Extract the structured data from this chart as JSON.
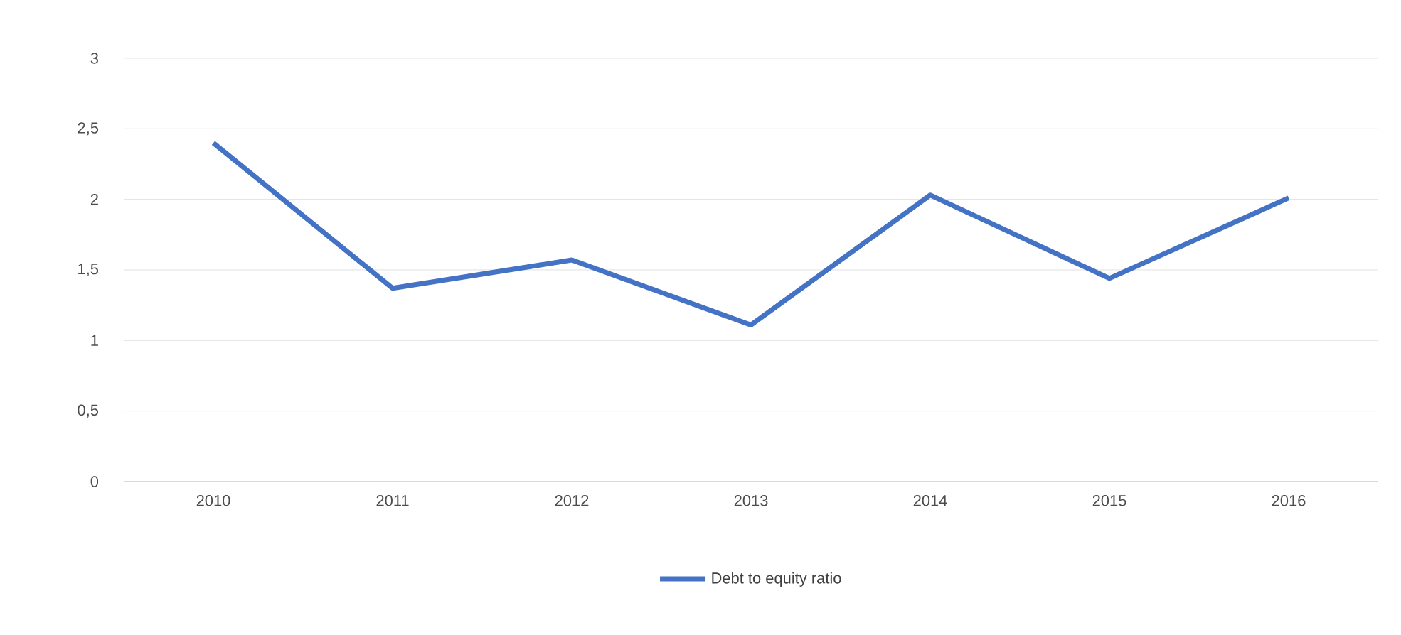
{
  "chart_data": {
    "type": "line",
    "categories": [
      "2010",
      "2011",
      "2012",
      "2013",
      "2014",
      "2015",
      "2016"
    ],
    "series": [
      {
        "name": "Debt to equity ratio",
        "color": "#4472c4",
        "values": [
          2.4,
          1.37,
          1.57,
          1.11,
          2.03,
          1.44,
          2.01
        ]
      }
    ],
    "ylim": [
      0,
      3
    ],
    "yticks": [
      0,
      {
        "value": 0.5,
        "label": "0,5"
      },
      1,
      {
        "value": 1.5,
        "label": "1,5"
      },
      2,
      {
        "value": 2.5,
        "label": "2,5"
      },
      3
    ],
    "grid": "y",
    "legend": "bottom",
    "marker": "none",
    "line_style": "solid"
  }
}
